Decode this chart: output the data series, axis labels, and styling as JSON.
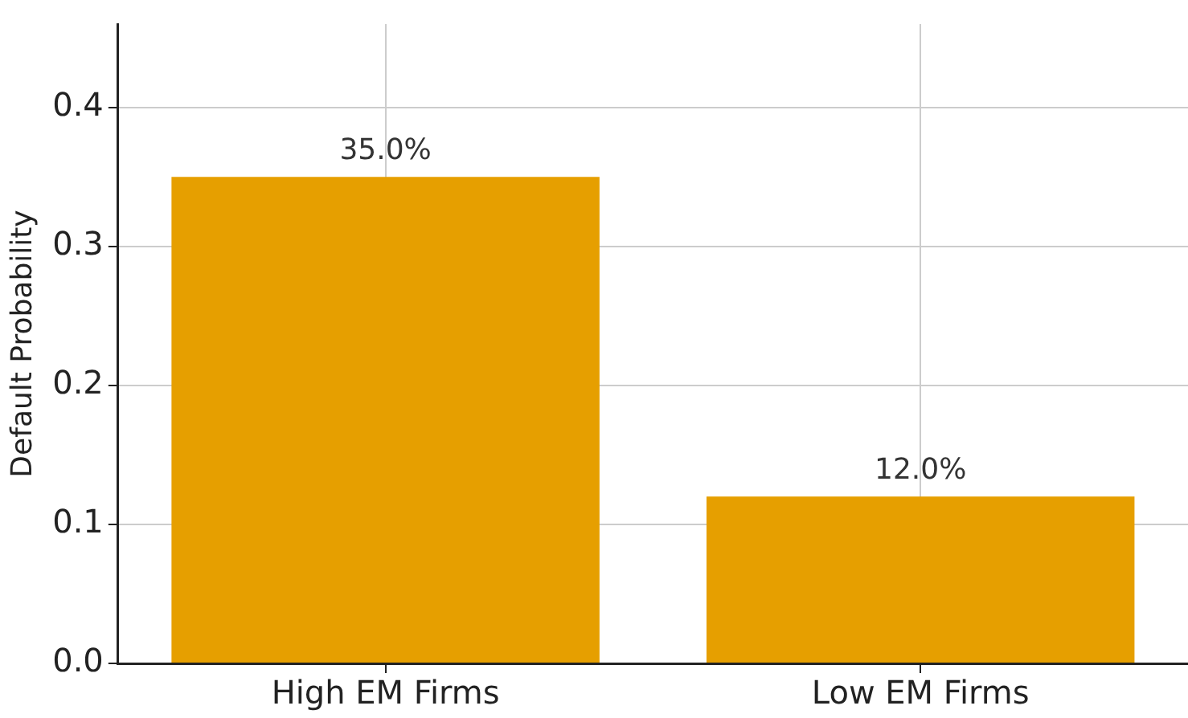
{
  "chart_data": {
    "type": "bar",
    "ylabel": "Default Probability",
    "categories": [
      "High EM Firms",
      "Low EM Firms"
    ],
    "values": [
      0.35,
      0.12
    ],
    "color": "#e69f00",
    "value_labels": [
      "35.0%",
      "12.0%"
    ],
    "ylim": [
      0,
      0.46
    ],
    "yticks": [
      {
        "value": 0,
        "label": "0.0"
      },
      {
        "value": 0.1,
        "label": "0.1"
      },
      {
        "value": 0.2,
        "label": "0.2"
      },
      {
        "value": 0.3,
        "label": "0.3"
      },
      {
        "value": 0.4,
        "label": "0.4"
      }
    ],
    "grid": true,
    "legend": false
  }
}
